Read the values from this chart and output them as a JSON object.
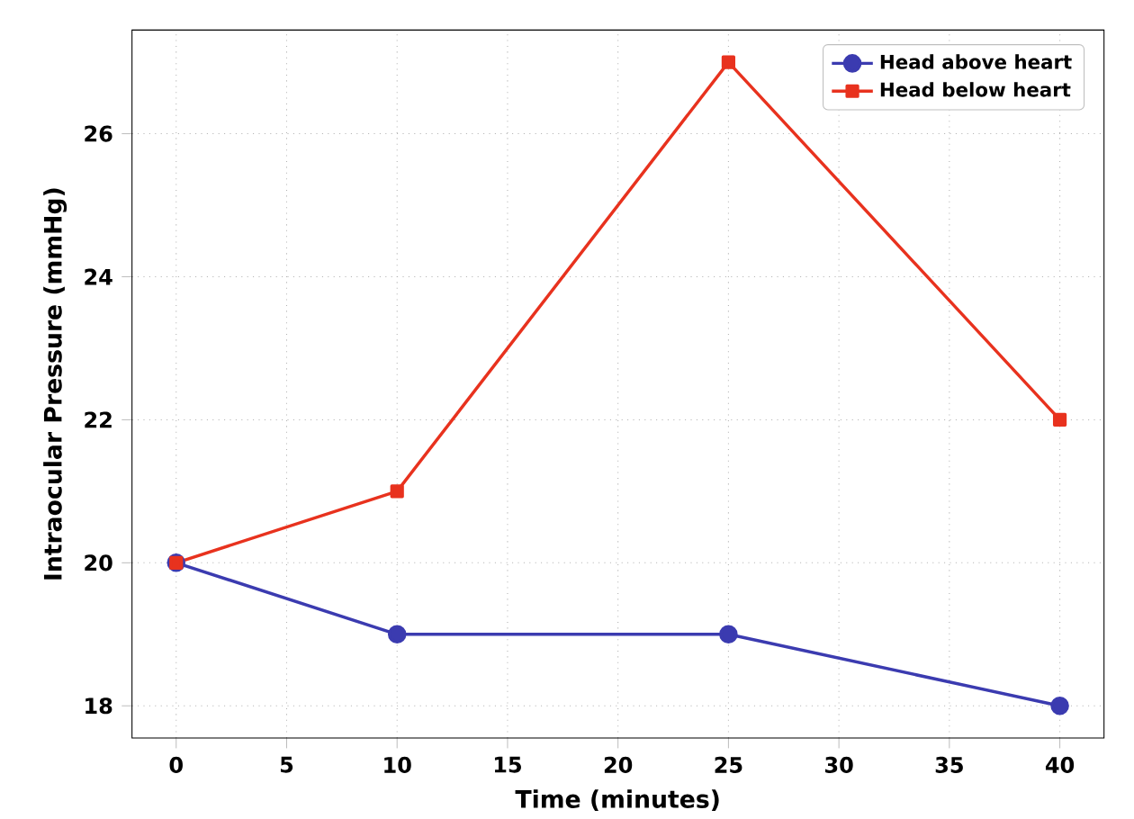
{
  "chart_data": {
    "type": "line",
    "xlabel": "Time (minutes)",
    "ylabel": "Intraocular Pressure (mmHg)",
    "x": [
      0,
      10,
      25,
      40
    ],
    "series": [
      {
        "name": "Head above heart",
        "color": "#3b3bb0",
        "values": [
          20,
          19,
          19,
          18
        ],
        "marker": "circle"
      },
      {
        "name": "Head below heart",
        "color": "#e8321e",
        "values": [
          20,
          21,
          27,
          22
        ],
        "marker": "square"
      }
    ],
    "xlim": [
      -2,
      42
    ],
    "xticks": [
      0,
      5,
      10,
      15,
      20,
      25,
      30,
      35,
      40
    ],
    "ylim": [
      17.55,
      27.45
    ],
    "yticks": [
      18,
      20,
      22,
      24,
      26
    ],
    "grid": true,
    "legend": "top right",
    "line_style": "solid"
  }
}
